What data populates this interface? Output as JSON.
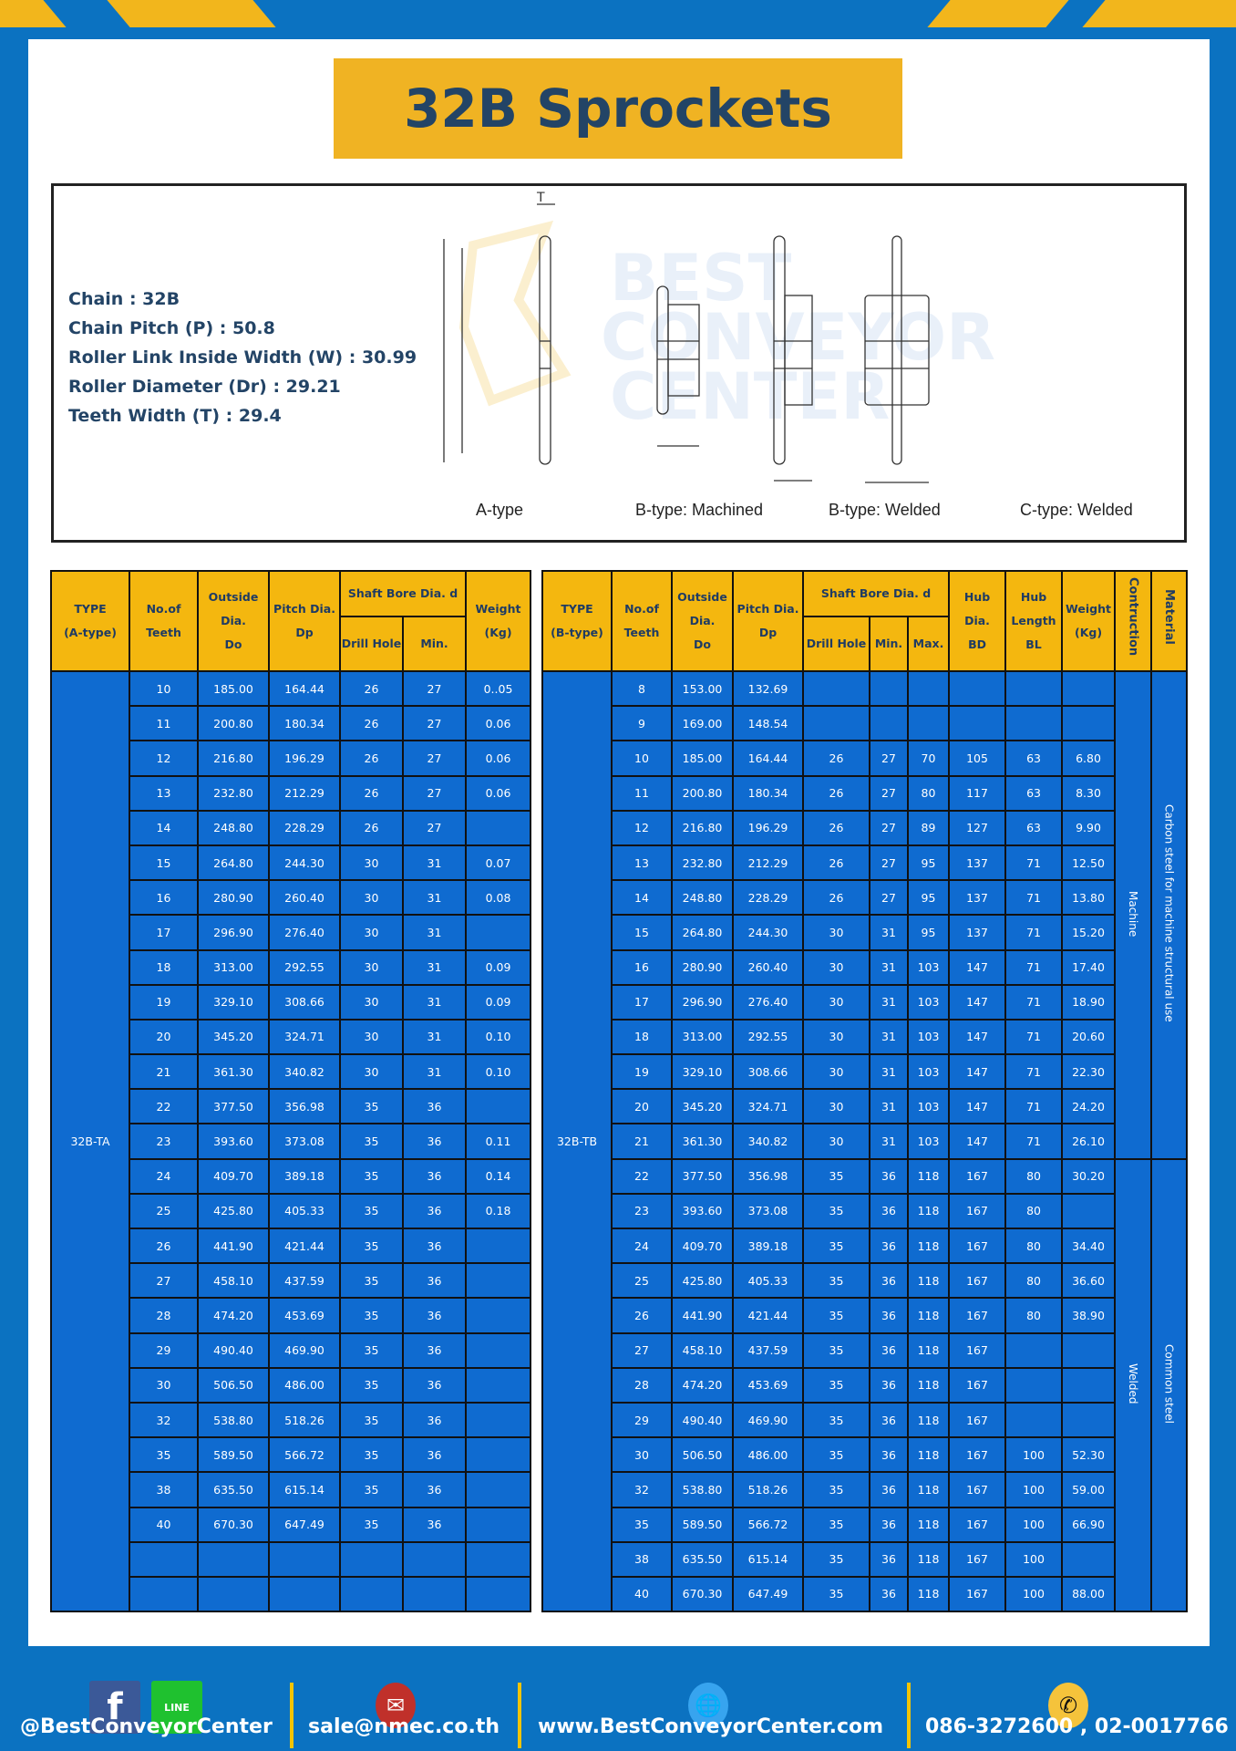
{
  "title": "32B Sprockets",
  "specs": [
    "Chain  : 32B",
    "Chain Pitch (P)  :  50.8",
    "Roller Link Inside Width (W)  :  30.99",
    "Roller Diameter (Dr)  : 29.21",
    "Teeth Width (T)  :  29.4"
  ],
  "diagram_labels": {
    "a": "A-type",
    "b1": "B-type: Machined",
    "b2": "B-type: Welded",
    "c": "C-type: Welded"
  },
  "watermark": "BEST CONVEYOR CENTER",
  "colors": {
    "background": "#0b72c1",
    "header": "#f4b70f",
    "cell": "#0f6bd0",
    "title_text": "#234466"
  },
  "table_a": {
    "headers": {
      "type": "TYPE",
      "type2": "(A-type)",
      "teeth": "No.of",
      "teeth2": "Teeth",
      "do1": "Outside",
      "do2": "Dia.",
      "do3": "Do",
      "dp1": "Pitch Dia.",
      "dp2": "Dp",
      "bore": "Shaft Bore Dia. d",
      "drill": "Drill Hole",
      "min": "Min.",
      "w1": "Weight",
      "w2": "(Kg)"
    },
    "type_value": "32B-TA",
    "rows": [
      [
        "10",
        "185.00",
        "164.44",
        "26",
        "27",
        "0..05"
      ],
      [
        "11",
        "200.80",
        "180.34",
        "26",
        "27",
        "0.06"
      ],
      [
        "12",
        "216.80",
        "196.29",
        "26",
        "27",
        "0.06"
      ],
      [
        "13",
        "232.80",
        "212.29",
        "26",
        "27",
        "0.06"
      ],
      [
        "14",
        "248.80",
        "228.29",
        "26",
        "27",
        ""
      ],
      [
        "15",
        "264.80",
        "244.30",
        "30",
        "31",
        "0.07"
      ],
      [
        "16",
        "280.90",
        "260.40",
        "30",
        "31",
        "0.08"
      ],
      [
        "17",
        "296.90",
        "276.40",
        "30",
        "31",
        ""
      ],
      [
        "18",
        "313.00",
        "292.55",
        "30",
        "31",
        "0.09"
      ],
      [
        "19",
        "329.10",
        "308.66",
        "30",
        "31",
        "0.09"
      ],
      [
        "20",
        "345.20",
        "324.71",
        "30",
        "31",
        "0.10"
      ],
      [
        "21",
        "361.30",
        "340.82",
        "30",
        "31",
        "0.10"
      ],
      [
        "22",
        "377.50",
        "356.98",
        "35",
        "36",
        ""
      ],
      [
        "23",
        "393.60",
        "373.08",
        "35",
        "36",
        "0.11"
      ],
      [
        "24",
        "409.70",
        "389.18",
        "35",
        "36",
        "0.14"
      ],
      [
        "25",
        "425.80",
        "405.33",
        "35",
        "36",
        "0.18"
      ],
      [
        "26",
        "441.90",
        "421.44",
        "35",
        "36",
        ""
      ],
      [
        "27",
        "458.10",
        "437.59",
        "35",
        "36",
        ""
      ],
      [
        "28",
        "474.20",
        "453.69",
        "35",
        "36",
        ""
      ],
      [
        "29",
        "490.40",
        "469.90",
        "35",
        "36",
        ""
      ],
      [
        "30",
        "506.50",
        "486.00",
        "35",
        "36",
        ""
      ],
      [
        "32",
        "538.80",
        "518.26",
        "35",
        "36",
        ""
      ],
      [
        "35",
        "589.50",
        "566.72",
        "35",
        "36",
        ""
      ],
      [
        "38",
        "635.50",
        "615.14",
        "35",
        "36",
        ""
      ],
      [
        "40",
        "670.30",
        "647.49",
        "35",
        "36",
        ""
      ],
      [
        "",
        "",
        "",
        "",
        "",
        ""
      ],
      [
        "",
        "",
        "",
        "",
        "",
        ""
      ]
    ]
  },
  "table_b": {
    "headers": {
      "type": "TYPE",
      "type2": "(B-type)",
      "teeth": "No.of",
      "teeth2": "Teeth",
      "do1": "Outside",
      "do2": "Dia.",
      "do3": "Do",
      "dp1": "Pitch Dia.",
      "dp2": "Dp",
      "bore": "Shaft Bore Dia. d",
      "drill": "Drill Hole",
      "min": "Min.",
      "max": "Max.",
      "bd1": "Hub Dia.",
      "bd2": "BD",
      "bl1": "Hub",
      "bl2": "Length",
      "bl3": "BL",
      "w1": "Weight",
      "w2": "(Kg)",
      "con": "Contruction",
      "mat": "Material"
    },
    "type_value": "32B-TB",
    "construction": [
      "Machine",
      "Welded"
    ],
    "material": [
      "Carbon steel for machine structural use",
      "Common steel"
    ],
    "rows": [
      [
        "8",
        "153.00",
        "132.69",
        "",
        "",
        "",
        "",
        "",
        ""
      ],
      [
        "9",
        "169.00",
        "148.54",
        "",
        "",
        "",
        "",
        "",
        ""
      ],
      [
        "10",
        "185.00",
        "164.44",
        "26",
        "27",
        "70",
        "105",
        "63",
        "6.80"
      ],
      [
        "11",
        "200.80",
        "180.34",
        "26",
        "27",
        "80",
        "117",
        "63",
        "8.30"
      ],
      [
        "12",
        "216.80",
        "196.29",
        "26",
        "27",
        "89",
        "127",
        "63",
        "9.90"
      ],
      [
        "13",
        "232.80",
        "212.29",
        "26",
        "27",
        "95",
        "137",
        "71",
        "12.50"
      ],
      [
        "14",
        "248.80",
        "228.29",
        "26",
        "27",
        "95",
        "137",
        "71",
        "13.80"
      ],
      [
        "15",
        "264.80",
        "244.30",
        "30",
        "31",
        "95",
        "137",
        "71",
        "15.20"
      ],
      [
        "16",
        "280.90",
        "260.40",
        "30",
        "31",
        "103",
        "147",
        "71",
        "17.40"
      ],
      [
        "17",
        "296.90",
        "276.40",
        "30",
        "31",
        "103",
        "147",
        "71",
        "18.90"
      ],
      [
        "18",
        "313.00",
        "292.55",
        "30",
        "31",
        "103",
        "147",
        "71",
        "20.60"
      ],
      [
        "19",
        "329.10",
        "308.66",
        "30",
        "31",
        "103",
        "147",
        "71",
        "22.30"
      ],
      [
        "20",
        "345.20",
        "324.71",
        "30",
        "31",
        "103",
        "147",
        "71",
        "24.20"
      ],
      [
        "21",
        "361.30",
        "340.82",
        "30",
        "31",
        "103",
        "147",
        "71",
        "26.10"
      ],
      [
        "22",
        "377.50",
        "356.98",
        "35",
        "36",
        "118",
        "167",
        "80",
        "30.20"
      ],
      [
        "23",
        "393.60",
        "373.08",
        "35",
        "36",
        "118",
        "167",
        "80",
        ""
      ],
      [
        "24",
        "409.70",
        "389.18",
        "35",
        "36",
        "118",
        "167",
        "80",
        "34.40"
      ],
      [
        "25",
        "425.80",
        "405.33",
        "35",
        "36",
        "118",
        "167",
        "80",
        "36.60"
      ],
      [
        "26",
        "441.90",
        "421.44",
        "35",
        "36",
        "118",
        "167",
        "80",
        "38.90"
      ],
      [
        "27",
        "458.10",
        "437.59",
        "35",
        "36",
        "118",
        "167",
        "",
        ""
      ],
      [
        "28",
        "474.20",
        "453.69",
        "35",
        "36",
        "118",
        "167",
        "",
        ""
      ],
      [
        "29",
        "490.40",
        "469.90",
        "35",
        "36",
        "118",
        "167",
        "",
        ""
      ],
      [
        "30",
        "506.50",
        "486.00",
        "35",
        "36",
        "118",
        "167",
        "100",
        "52.30"
      ],
      [
        "32",
        "538.80",
        "518.26",
        "35",
        "36",
        "118",
        "167",
        "100",
        "59.00"
      ],
      [
        "35",
        "589.50",
        "566.72",
        "35",
        "36",
        "118",
        "167",
        "100",
        "66.90"
      ],
      [
        "38",
        "635.50",
        "615.14",
        "35",
        "36",
        "118",
        "167",
        "100",
        ""
      ],
      [
        "40",
        "670.30",
        "647.49",
        "35",
        "36",
        "118",
        "167",
        "100",
        "88.00"
      ]
    ]
  },
  "footer": {
    "social": "@BestConveyorCenter",
    "email": "sale@nmec.co.th",
    "website": "www.BestConveyorCenter.com",
    "phone": "086-3272600 , 02-0017766",
    "line_label": "LINE"
  }
}
